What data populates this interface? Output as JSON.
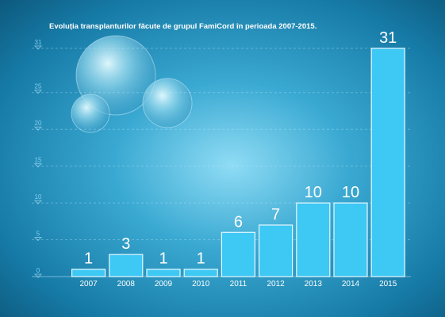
{
  "chart_data": {
    "type": "bar",
    "title": "Evoluția transplanturilor făcute de grupul FamiCord în perioada 2007-2015.",
    "xlabel": "",
    "ylabel": "",
    "categories": [
      "2007",
      "2008",
      "2009",
      "2010",
      "2011",
      "2012",
      "2013",
      "2014",
      "2015"
    ],
    "values": [
      1,
      3,
      1,
      1,
      6,
      7,
      10,
      10,
      31
    ],
    "y_ticks": [
      "0",
      "5",
      "10",
      "15",
      "20",
      "25",
      "31"
    ],
    "ylim": [
      0,
      31
    ],
    "grid": true,
    "legend": "none",
    "colors": {
      "background_dark": "#0d5a7e",
      "background_mid": "#1a8bb5",
      "background_light": "#7fd6f2",
      "bar_fill": "#3ec8f4",
      "bar_border": "#e8f8ff",
      "text": "#ffffff"
    }
  }
}
